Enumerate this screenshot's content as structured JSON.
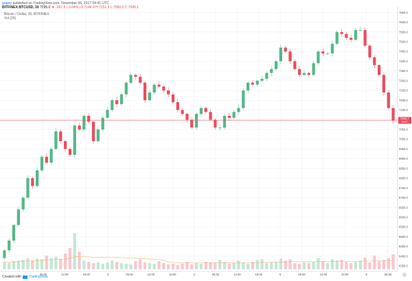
{
  "header": {
    "user": "grapry",
    "published": "published on TradingView.com, November 06, 2017 04:41 UTC",
    "symbol": "BITFINEX:BTCUSD, 30",
    "last": "7095.0",
    "change": "▼ -267.8 (-3.64%)",
    "ohlc": "O:7146.9 H:7151.8 L:7090.0 C:7095.1"
  },
  "legend": {
    "title": "Bitcoin / Dollar, 30, BITFINEX",
    "volume": "Vol (20)"
  },
  "price_axis": {
    "labels": [
      "7650.0",
      "7600.0",
      "7550.0",
      "7500.0",
      "7450.0",
      "7400.0",
      "7350.0",
      "7300.0",
      "7250.0",
      "7200.0",
      "7150.0",
      "7100.0",
      "7050.0",
      "7000.0",
      "6950.0",
      "6900.0",
      "6850.0",
      "6800.0",
      "6750.0",
      "6700.0",
      "6650.0",
      "6600.0",
      "6550.0",
      "6500.0",
      "6450.0",
      "6400.0",
      "6350.0"
    ],
    "current_price": "7096.7",
    "current_sub": "14:57"
  },
  "time_axis": {
    "labels": [
      "06:00",
      "12:00",
      "18:00",
      "3",
      "06:00",
      "12:00",
      "18:00",
      "4",
      "06:00",
      "12:00",
      "18:00",
      "5",
      "06:00",
      "12:00",
      "18:00",
      "6",
      "06:00"
    ]
  },
  "footer": {
    "created_with": "Created with",
    "brand": "TradingView"
  },
  "colors": {
    "up": "#53b987",
    "down": "#eb4d5c",
    "up_volume": "#c4e7d3",
    "down_volume": "#f7c8cd",
    "price_line": "#eb4d5c",
    "grid": "#eef1f6",
    "ma": "#f6b26b"
  },
  "chart_data": {
    "type": "candlestick",
    "title": "Bitcoin / Dollar, 30, BITFINEX",
    "y_range": [
      6350,
      7665
    ],
    "current_price": 7096.7,
    "x_labels": [
      "06:00",
      "12:00",
      "18:00",
      "3",
      "06:00",
      "12:00",
      "18:00",
      "4",
      "06:00",
      "12:00",
      "18:00",
      "5",
      "06:00",
      "12:00",
      "18:00",
      "6",
      "06:00"
    ],
    "close": [
      6430,
      6480,
      6560,
      6640,
      6700,
      6800,
      6760,
      6840,
      6910,
      6880,
      6950,
      7040,
      6990,
      6950,
      6920,
      7070,
      7050,
      7120,
      7090,
      6990,
      7050,
      7110,
      7150,
      7200,
      7180,
      7230,
      7290,
      7330,
      7320,
      7290,
      7200,
      7240,
      7280,
      7270,
      7250,
      7230,
      7190,
      7150,
      7130,
      7100,
      7060,
      7130,
      7160,
      7140,
      7100,
      7060,
      7060,
      7120,
      7110,
      7140,
      7160,
      7250,
      7290,
      7280,
      7300,
      7310,
      7340,
      7360,
      7400,
      7470,
      7450,
      7400,
      7360,
      7330,
      7340,
      7330,
      7390,
      7450,
      7440,
      7440,
      7490,
      7550,
      7540,
      7520,
      7510,
      7560,
      7560,
      7480,
      7420,
      7380,
      7330,
      7240,
      7160,
      7095
    ],
    "volume_scale": "relative",
    "volume": [
      12,
      10,
      13,
      14,
      15,
      18,
      14,
      17,
      16,
      22,
      18,
      20,
      17,
      25,
      34,
      58,
      28,
      14,
      12,
      10,
      11,
      9,
      11,
      14,
      12,
      10,
      9,
      8,
      13,
      16,
      11,
      10,
      9,
      13,
      10,
      8,
      9,
      7,
      9,
      12,
      8,
      10,
      9,
      12,
      11,
      10,
      15,
      12,
      9,
      10,
      14,
      11,
      9,
      12,
      15,
      16,
      10,
      11,
      12,
      17,
      14,
      16,
      10,
      9,
      11,
      10,
      12,
      18,
      13,
      10,
      16,
      14,
      15,
      12,
      10,
      12,
      14,
      19,
      11,
      22,
      13,
      15,
      18,
      24
    ]
  }
}
